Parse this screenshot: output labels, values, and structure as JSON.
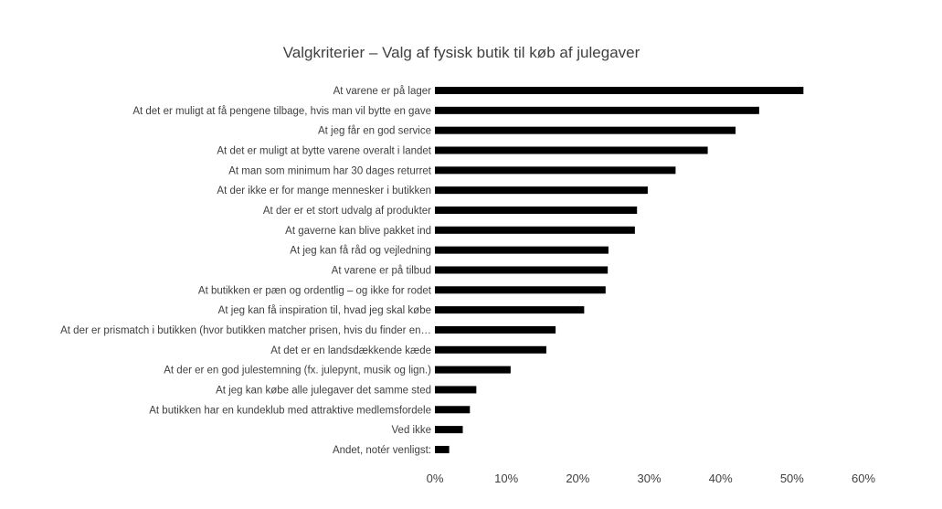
{
  "chart_data": {
    "type": "bar",
    "orientation": "horizontal",
    "title": "Valgkriterier – Valg af fysisk butik til køb af julegaver",
    "xlabel": "",
    "ylabel": "",
    "xlim": [
      0,
      0.6
    ],
    "xticks": [
      0,
      0.1,
      0.2,
      0.3,
      0.4,
      0.5,
      0.6
    ],
    "xtick_labels": [
      "0%",
      "10%",
      "20%",
      "30%",
      "40%",
      "50%",
      "60%"
    ],
    "grid": false,
    "legend": "none",
    "bar_color": "#000000",
    "categories": [
      "At varene er på lager",
      "At det er muligt at få pengene tilbage, hvis man vil bytte en gave",
      "At jeg får en god service",
      "At det er muligt at bytte varene overalt i landet",
      "At man som minimum har 30 dages returret",
      "At der ikke er for mange mennesker i butikken",
      "At der er et stort udvalg af produkter",
      "At gaverne kan blive pakket ind",
      "At jeg kan få råd og vejledning",
      "At varene er på tilbud",
      "At butikken er pæn og ordentlig – og ikke for rodet",
      "At jeg kan få inspiration til, hvad jeg skal købe",
      "At der er prismatch i butikken (hvor butikken matcher prisen, hvis du finder en…",
      "At det er en landsdækkende kæde",
      "At der er en god julestemning (fx. julepynt, musik og lign.)",
      "At jeg kan købe alle julegaver det samme sted",
      "At butikken har en kundeklub med attraktive medlemsfordele",
      "Ved ikke",
      "Andet, notér venligst:"
    ],
    "values": [
      0.516,
      0.454,
      0.421,
      0.382,
      0.337,
      0.298,
      0.283,
      0.28,
      0.243,
      0.242,
      0.239,
      0.209,
      0.169,
      0.156,
      0.106,
      0.058,
      0.049,
      0.039,
      0.02
    ]
  }
}
